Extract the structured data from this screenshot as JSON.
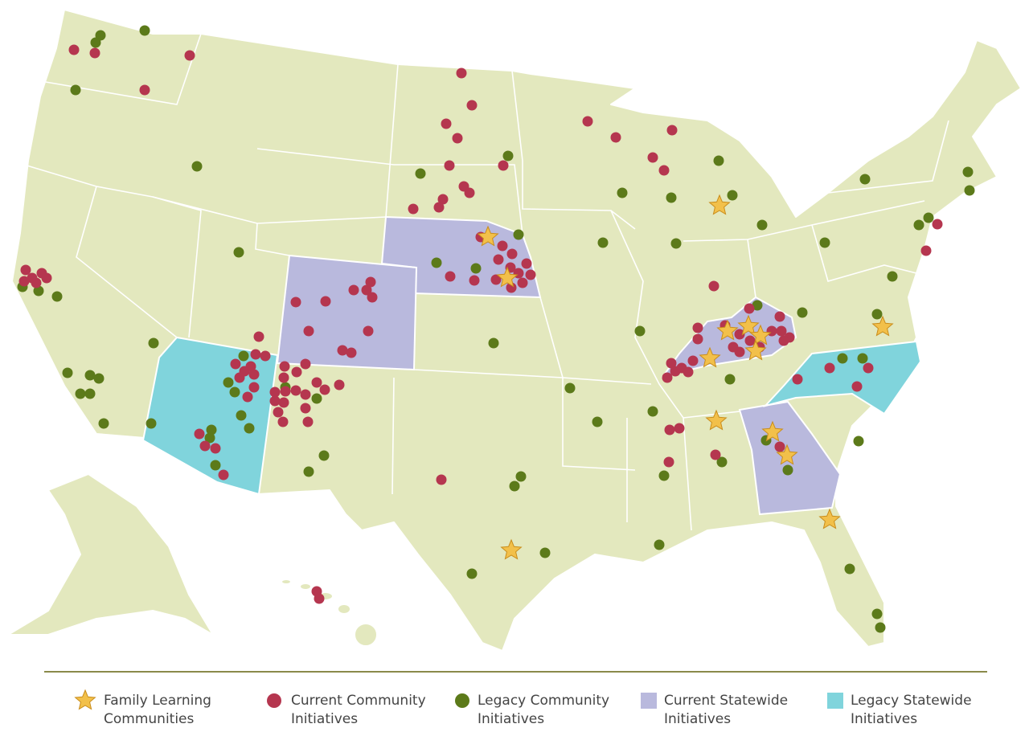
{
  "legend": {
    "items": [
      {
        "label": "Family Learning Communities"
      },
      {
        "label": "Current Community Initiatives"
      },
      {
        "label": "Legacy Community Initiatives"
      },
      {
        "label": "Current Statewide Initiatives"
      },
      {
        "label": "Legacy Statewide Initiatives"
      }
    ]
  }
}
